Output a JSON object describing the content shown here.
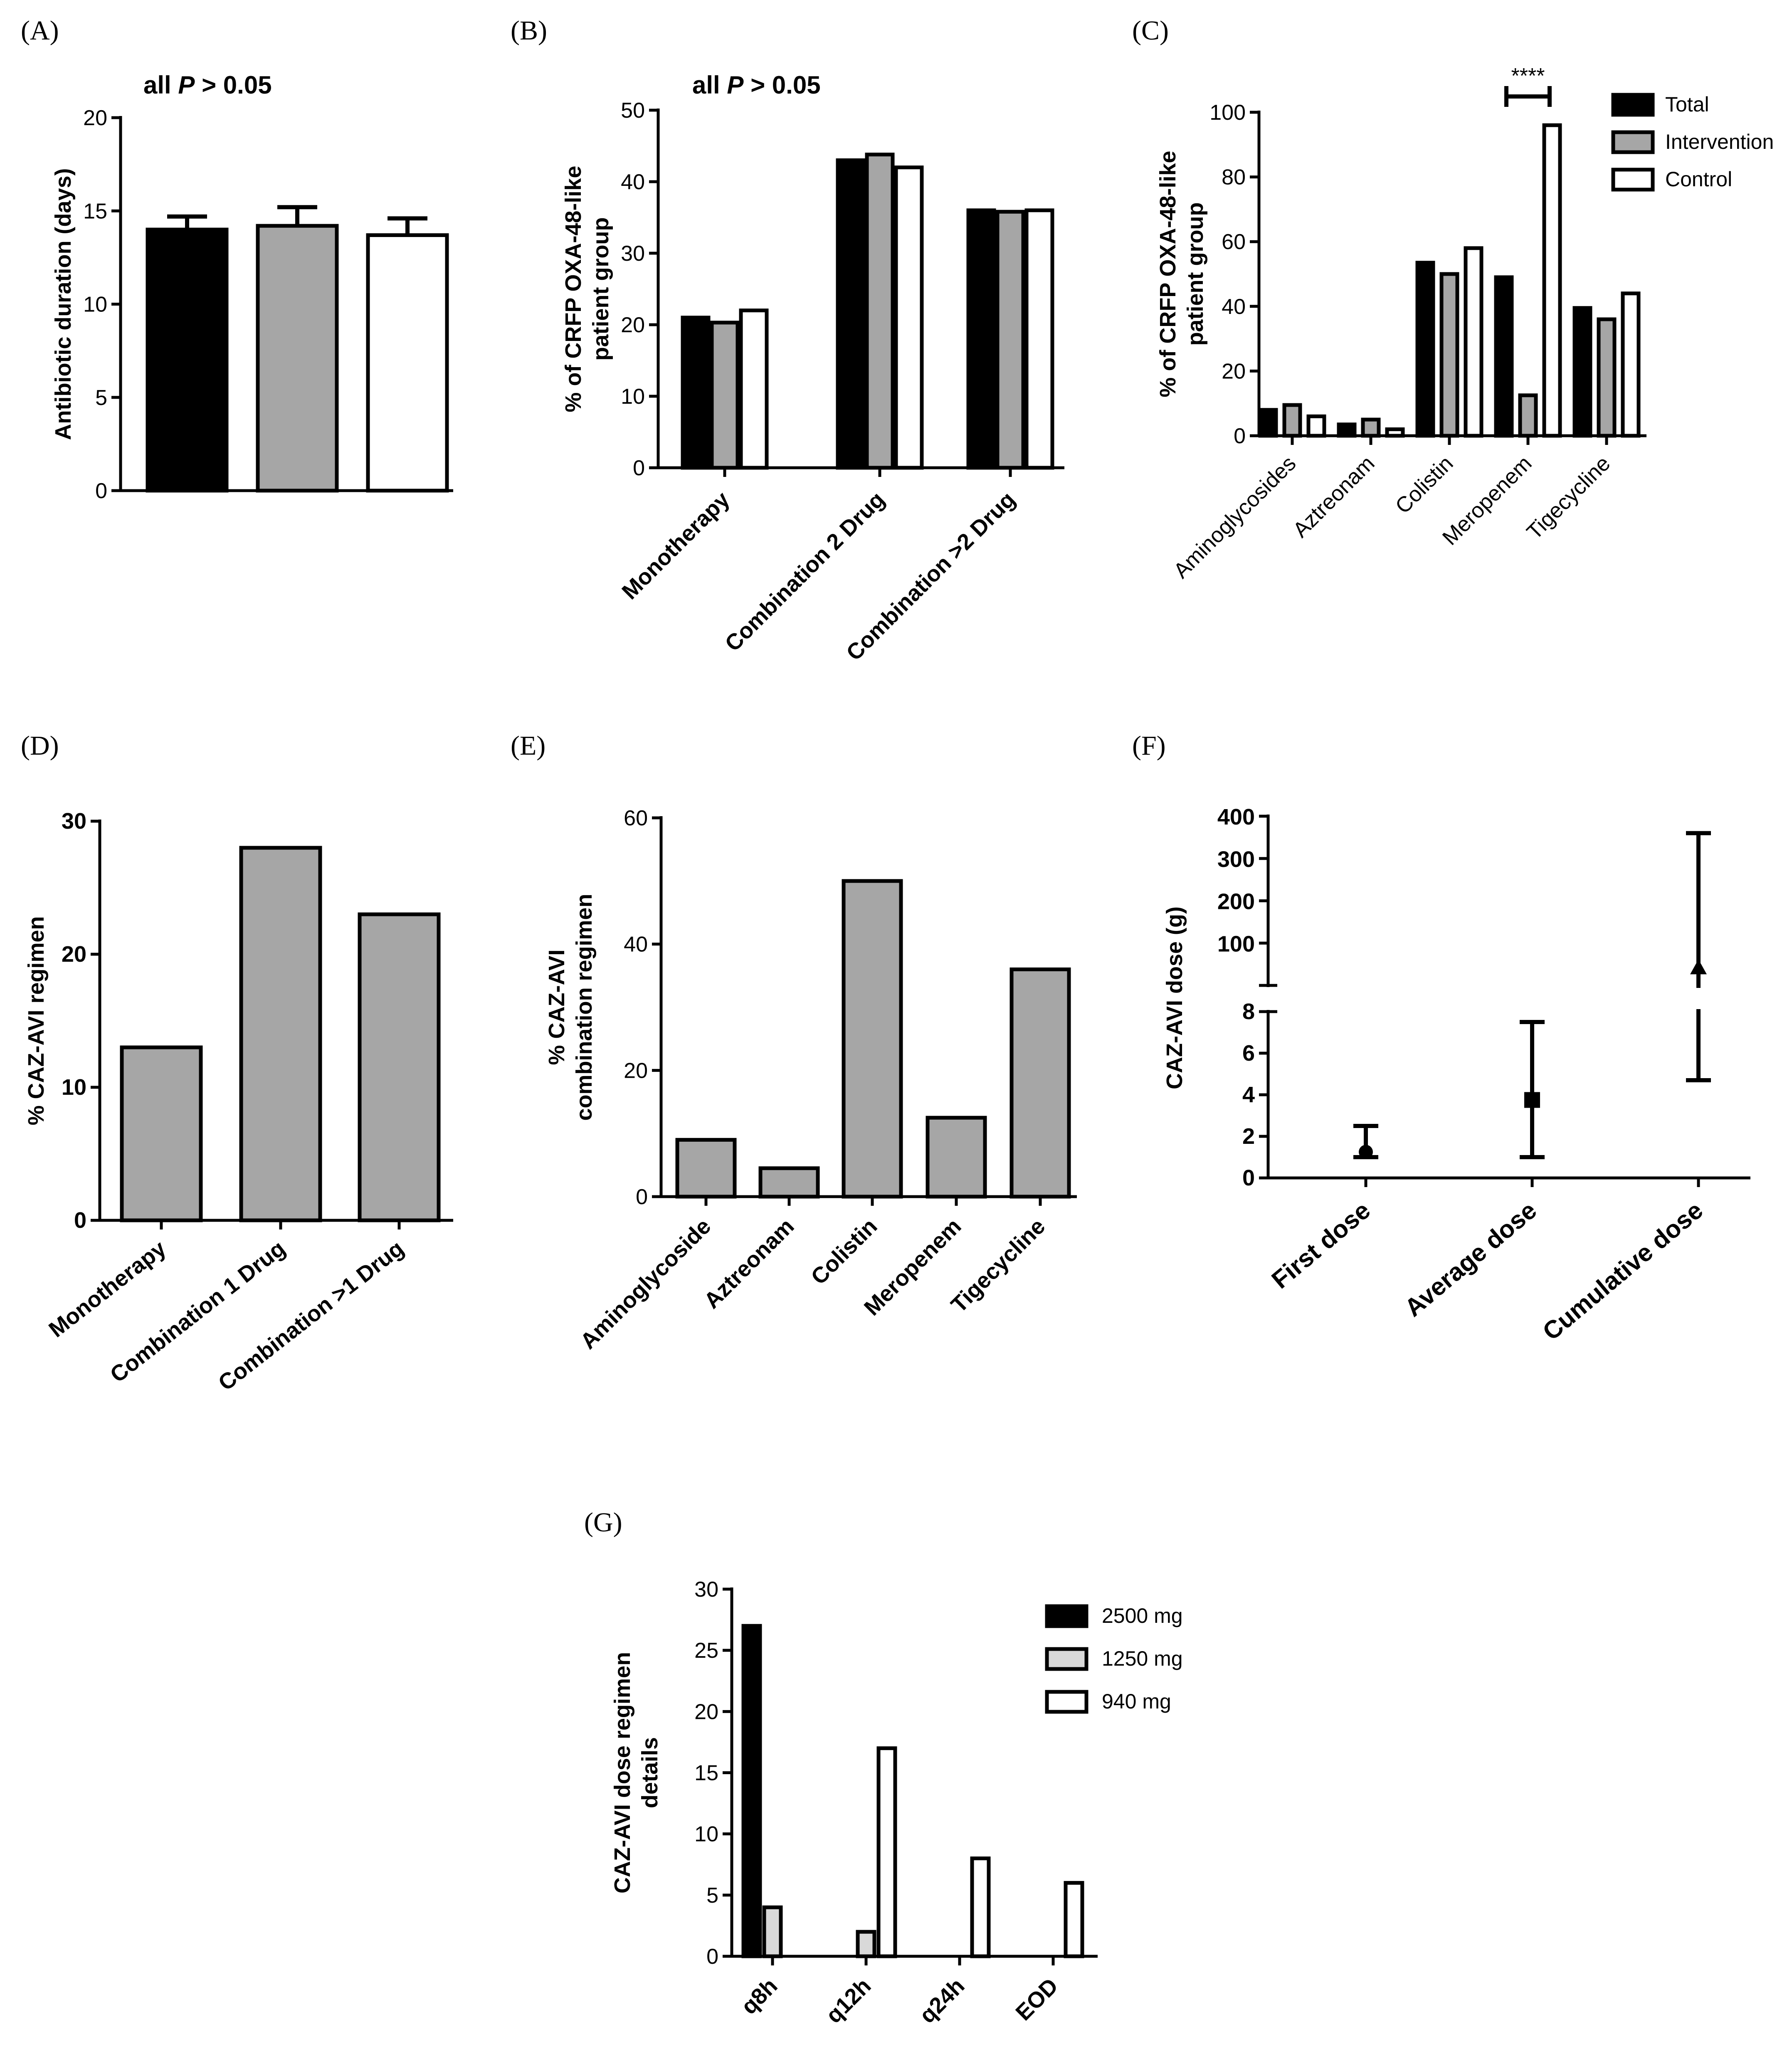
{
  "colors": {
    "Total": "#000000",
    "Intervention": "#a6a6a6",
    "Control": "#ffffff",
    "single": "#a6a6a6",
    "2500 mg": "#000000",
    "1250 mg": "#d9d9d9",
    "940 mg": "#ffffff"
  },
  "chart_data": [
    {
      "id": "A",
      "panel_label": "(A)",
      "type": "bar",
      "title": "",
      "annotation": {
        "prefix": "all ",
        "italic": "P",
        "suffix": " > 0.05"
      },
      "categories": [
        "Total",
        "Intervention",
        "Control"
      ],
      "values": [
        14.0,
        14.2,
        13.7
      ],
      "errors": [
        0.7,
        1.0,
        0.9
      ],
      "ylabel": "Antibiotic duration (days)",
      "ylim": [
        0,
        20
      ],
      "yticks": [
        0,
        5,
        10,
        15,
        20
      ],
      "show_xticklabels": false
    },
    {
      "id": "B",
      "panel_label": "(B)",
      "type": "bar",
      "annotation": {
        "prefix": "all ",
        "italic": "P",
        "suffix": " > 0.05"
      },
      "categories": [
        "Monotherapy",
        "Combination 2 Drug",
        "Combination >2 Drug"
      ],
      "series": [
        {
          "name": "Total",
          "values": [
            21,
            43,
            36
          ]
        },
        {
          "name": "Intervention",
          "values": [
            20.3,
            43.8,
            35.8
          ]
        },
        {
          "name": "Control",
          "values": [
            22,
            42,
            36
          ]
        }
      ],
      "ylabel": [
        "% of CRFP OXA-48-like",
        "patient group"
      ],
      "ylim": [
        0,
        50
      ],
      "yticks": [
        0,
        10,
        20,
        30,
        40,
        50
      ]
    },
    {
      "id": "C",
      "panel_label": "(C)",
      "type": "bar",
      "categories": [
        "Aminoglycosides",
        "Aztreonam",
        "Colistin",
        "Meropenem",
        "Tigecycline"
      ],
      "series": [
        {
          "name": "Total",
          "values": [
            8,
            3.5,
            53.5,
            49,
            39.5
          ]
        },
        {
          "name": "Intervention",
          "values": [
            9.5,
            5,
            50,
            12.5,
            36
          ]
        },
        {
          "name": "Control",
          "values": [
            6,
            2,
            58,
            96,
            44
          ]
        }
      ],
      "significance": {
        "label": "****",
        "category": "Meropenem"
      },
      "legend": [
        "Total",
        "Intervention",
        "Control"
      ],
      "ylabel": [
        "% of CRFP OXA-48-like",
        "patient group"
      ],
      "ylim": [
        0,
        100
      ],
      "yticks": [
        0,
        20,
        40,
        60,
        80,
        100
      ]
    },
    {
      "id": "D",
      "panel_label": "(D)",
      "type": "bar",
      "categories": [
        "Monotherapy",
        "Combination 1 Drug",
        "Combination >1 Drug"
      ],
      "values": [
        13,
        28,
        23
      ],
      "ylabel": "%  CAZ-AVI regimen",
      "ylim": [
        0,
        30
      ],
      "yticks": [
        0,
        10,
        20,
        30
      ]
    },
    {
      "id": "E",
      "panel_label": "(E)",
      "type": "bar",
      "categories": [
        "Aminoglycoside",
        "Aztreonam",
        "Colistin",
        "Meropenem",
        "Tigecycline"
      ],
      "values": [
        9,
        4.5,
        50,
        12.5,
        36
      ],
      "ylabel": [
        "% CAZ-AVI",
        "combination regimen"
      ],
      "ylim": [
        0,
        60
      ],
      "yticks": [
        0,
        20,
        40,
        60
      ]
    },
    {
      "id": "F",
      "panel_label": "(F)",
      "type": "scatter",
      "categories": [
        "First dose",
        "Average dose",
        "Cumulative dose"
      ],
      "markers": [
        "circle",
        "square",
        "triangle"
      ],
      "points": [
        {
          "median": 1.25,
          "low": 1.0,
          "high": 2.5
        },
        {
          "median": 3.75,
          "low": 1.0,
          "high": 7.5
        },
        {
          "median": 40,
          "low": 4.7,
          "high": 360
        }
      ],
      "ylabel": "CAZ-AVI dose (g)",
      "axis_break": true,
      "yticks_low": [
        0,
        2,
        4,
        6,
        8
      ],
      "yticks_high": [
        100,
        200,
        300,
        400
      ]
    },
    {
      "id": "G",
      "panel_label": "(G)",
      "type": "bar",
      "categories": [
        "q8h",
        "q12h",
        "q24h",
        "EOD"
      ],
      "series": [
        {
          "name": "2500 mg",
          "values": [
            27,
            0,
            0,
            0
          ]
        },
        {
          "name": "1250 mg",
          "values": [
            4,
            2,
            0,
            0
          ]
        },
        {
          "name": "940 mg",
          "values": [
            0,
            17,
            8,
            6
          ]
        }
      ],
      "legend": [
        "2500 mg",
        "1250 mg",
        "940 mg"
      ],
      "ylabel": [
        "CAZ-AVI dose regimen",
        "details"
      ],
      "ylim": [
        0,
        30
      ],
      "yticks": [
        0,
        5,
        10,
        15,
        20,
        25,
        30
      ]
    }
  ]
}
